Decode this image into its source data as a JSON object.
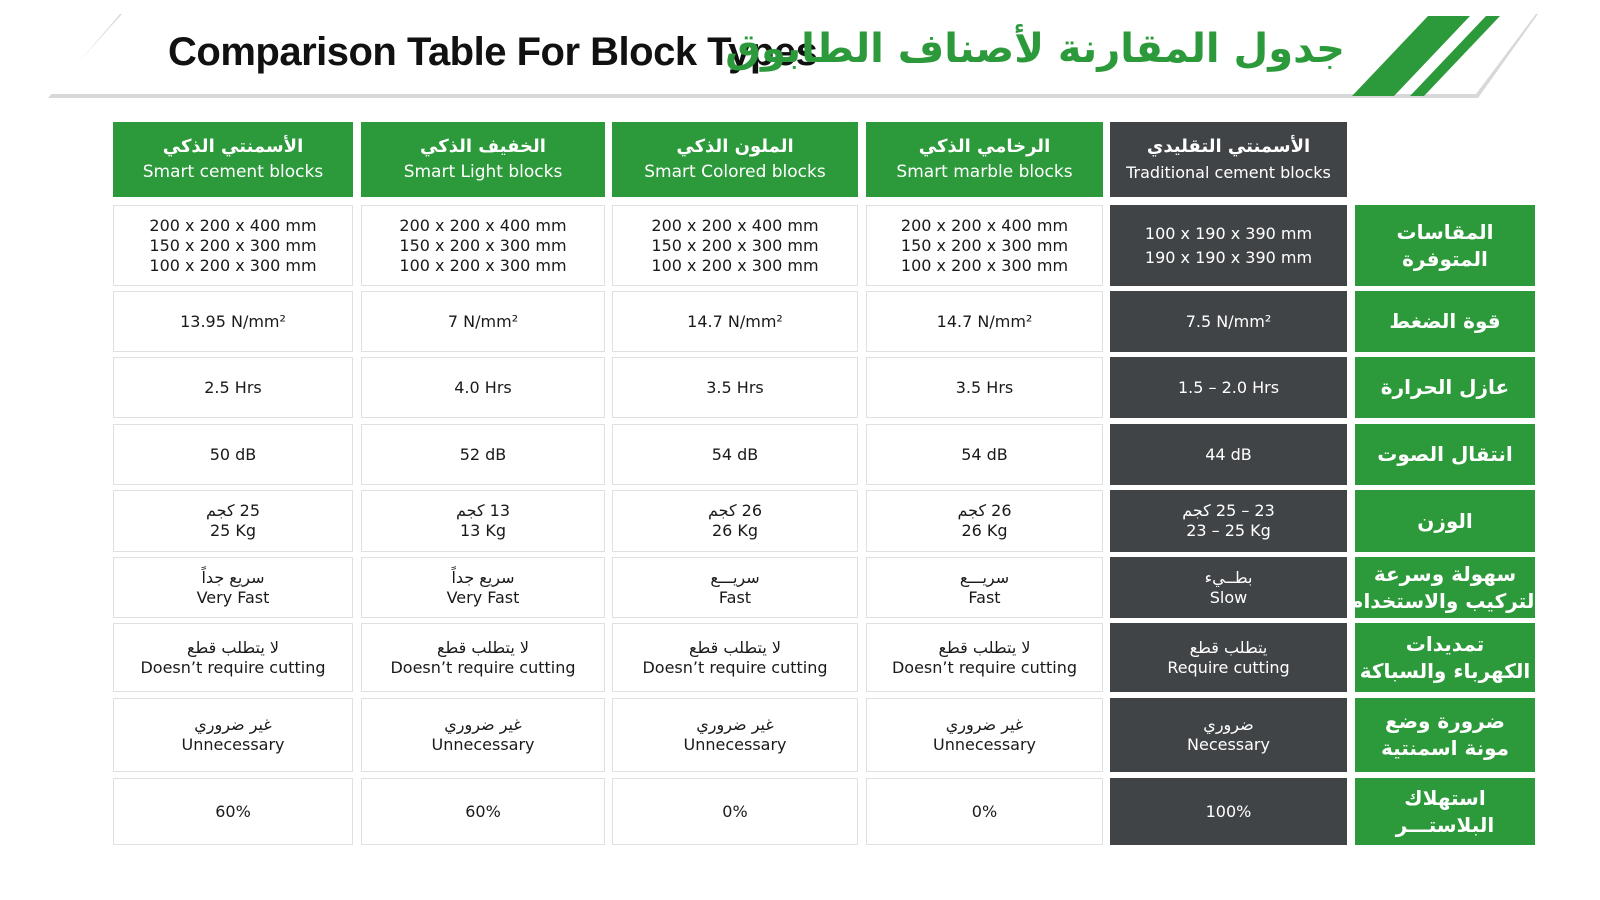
{
  "title": {
    "en": "Comparison Table For Block Types",
    "ar": "جدول المقارنة لأصناف الطابوق"
  },
  "colors": {
    "green": "#2c9a3a",
    "dark": "#404447"
  },
  "columns": [
    {
      "ar": "الأسمنتي الذكي",
      "en": "Smart cement blocks",
      "style": "green"
    },
    {
      "ar": "الخفيف الذكي",
      "en": "Smart Light blocks",
      "style": "green"
    },
    {
      "ar": "الملون الذكي",
      "en": "Smart Colored blocks",
      "style": "green"
    },
    {
      "ar": "الرخامي الذكي",
      "en": "Smart marble blocks",
      "style": "green"
    },
    {
      "ar": "الأسمنتي التقليدي",
      "en": "Traditional cement blocks",
      "style": "dark"
    }
  ],
  "rows": [
    {
      "label": [
        "المقاسات",
        "المتوفرة"
      ],
      "cells": [
        [
          "200 x 200 x 400 mm",
          "150 x 200 x 300 mm",
          "100 x 200 x 300 mm"
        ],
        [
          "200 x 200 x 400 mm",
          "150 x 200 x 300 mm",
          "100 x 200 x 300 mm"
        ],
        [
          "200 x 200 x 400 mm",
          "150 x 200 x 300 mm",
          "100 x 200 x 300 mm"
        ],
        [
          "200 x 200 x 400 mm",
          "150 x 200 x 300 mm",
          "100 x 200 x 300 mm"
        ],
        [
          "100 x 190 x 390 mm",
          "190 x 190 x 390 mm"
        ]
      ]
    },
    {
      "label": [
        "قوة الضغط"
      ],
      "cells": [
        [
          "13.95 N/mm²"
        ],
        [
          "7 N/mm²"
        ],
        [
          "14.7 N/mm²"
        ],
        [
          "14.7 N/mm²"
        ],
        [
          "7.5 N/mm²"
        ]
      ]
    },
    {
      "label": [
        "عازل الحرارة"
      ],
      "cells": [
        [
          "2.5 Hrs"
        ],
        [
          "4.0 Hrs"
        ],
        [
          "3.5 Hrs"
        ],
        [
          "3.5 Hrs"
        ],
        [
          "1.5 – 2.0 Hrs"
        ]
      ]
    },
    {
      "label": [
        "انتقال الصوت"
      ],
      "cells": [
        [
          "50 dB"
        ],
        [
          "52 dB"
        ],
        [
          "54 dB"
        ],
        [
          "54 dB"
        ],
        [
          "44 dB"
        ]
      ]
    },
    {
      "label": [
        "الوزن"
      ],
      "cells": [
        [
          "25 كجم",
          "25 Kg"
        ],
        [
          "13 كجم",
          "13 Kg"
        ],
        [
          "26 كجم",
          "26 Kg"
        ],
        [
          "26 كجم",
          "26 Kg"
        ],
        [
          "23 – 25 كجم",
          "23 – 25 Kg"
        ]
      ]
    },
    {
      "label": [
        "سهولة وسرعة",
        "التركيب والاستخدام"
      ],
      "cells": [
        [
          "سريع جداً",
          "Very Fast"
        ],
        [
          "سريع جداً",
          "Very Fast"
        ],
        [
          "سريـــع",
          "Fast"
        ],
        [
          "سريـــع",
          "Fast"
        ],
        [
          "بطــيء",
          "Slow"
        ]
      ]
    },
    {
      "label": [
        "تمديدات",
        "الكهرباء والسباكة"
      ],
      "cells": [
        [
          "لا يتطلب قطع",
          "Doesn’t require cutting"
        ],
        [
          "لا يتطلب قطع",
          "Doesn’t require cutting"
        ],
        [
          "لا يتطلب قطع",
          "Doesn’t require cutting"
        ],
        [
          "لا يتطلب قطع",
          "Doesn’t require cutting"
        ],
        [
          "يتطلب قطع",
          "Require cutting"
        ]
      ]
    },
    {
      "label": [
        "ضرورة وضع",
        "مونة اسمنتية"
      ],
      "cells": [
        [
          "غير ضروري",
          "Unnecessary"
        ],
        [
          "غير ضروري",
          "Unnecessary"
        ],
        [
          "غير ضروري",
          "Unnecessary"
        ],
        [
          "غير ضروري",
          "Unnecessary"
        ],
        [
          "ضروري",
          "Necessary"
        ]
      ]
    },
    {
      "label": [
        "استهلاك",
        "البلاستـــر"
      ],
      "cells": [
        [
          "60%"
        ],
        [
          "60%"
        ],
        [
          "0%"
        ],
        [
          "0%"
        ],
        [
          "100%"
        ]
      ]
    }
  ]
}
